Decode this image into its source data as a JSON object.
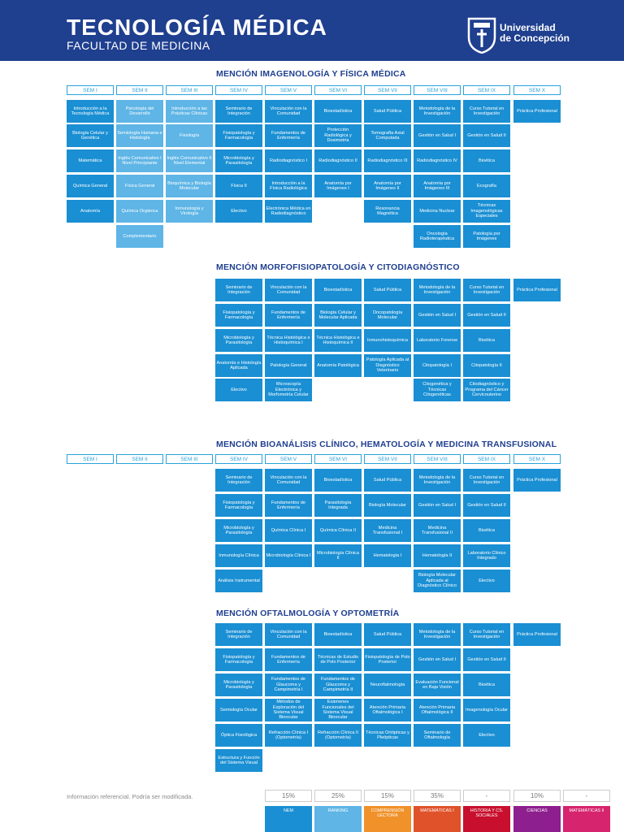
{
  "header": {
    "title": "TECNOLOGÍA MÉDICA",
    "subtitle": "FACULTAD DE MEDICINA",
    "university": [
      "Universidad",
      "de Concepción"
    ]
  },
  "semesters": [
    "SEM I",
    "SEM II",
    "SEM III",
    "SEM IV",
    "SEM V",
    "SEM VI",
    "SEM VII",
    "SEM VIII",
    "SEM IX",
    "SEM X"
  ],
  "sections": [
    {
      "title": "MENCIÓN IMAGENOLOGÍA Y FÍSICA MÉDICA",
      "show_sems": true,
      "columns": [
        [
          "Introducción a la Tecnología Médica",
          "Biología Celular y Genética",
          "Matemática",
          "Química General",
          "Anatomía"
        ],
        [
          "Psicología del Desarrollo",
          "Semiología Humana e Histología",
          "Inglés Comunicativo I Nivel Principiante",
          "Física General",
          "Química Orgánica",
          "Complementario"
        ],
        [
          "Introducción a las Prácticas Clínicas",
          "Fisiología",
          "Inglés Comunicativo II Nivel Elemental",
          "Bioquímica y Biología Molecular",
          "Inmunología y Virología"
        ],
        [
          "Seminario de Integración",
          "Fisiopatología y Farmacología",
          "Microbiología y Parasitología",
          "Física II",
          "Electivo"
        ],
        [
          "Vinculación con la Comunidad",
          "Fundamentos de Enfermería",
          "Radiodiagnóstico I",
          "Introducción a la Física Radiológica",
          "Electrónica Médica en Radiodiagnóstico"
        ],
        [
          "Bioestadística",
          "Protección Radiológica y Dosimetría",
          "Radiodiagnóstico II",
          "Anatomía por Imágenes I"
        ],
        [
          "Salud Pública",
          "Tomografía Axial Computada",
          "Radiodiagnóstico III",
          "Anatomía por Imágenes II",
          "Resonancia Magnética"
        ],
        [
          "Metodología de la Investigación",
          "Gestión en Salud I",
          "Radiodiagnóstico IV",
          "Anatomía por Imágenes III",
          "Medicina Nuclear",
          "Oncología Radioterapéutica"
        ],
        [
          "Curso Tutorial en Investigación",
          "Gestión en Salud II",
          "Bioética",
          "Ecografía",
          "Técnicas Imagenológicas Especiales",
          "Patología por Imágenes"
        ],
        [
          "Práctica Profesional"
        ]
      ]
    },
    {
      "title": "MENCIÓN MORFOFISIOPATOLOGÍA Y CITODIAGNÓSTICO",
      "show_sems": false,
      "columns": [
        [],
        [],
        [],
        [
          "Seminario de Integración",
          "Fisiopatología y Farmacología",
          "Microbiología y Parasitología",
          "Anatomía e Histología Aplicada",
          "Electivo"
        ],
        [
          "Vinculación con la Comunidad",
          "Fundamentos de Enfermería",
          "Técnica Histológica e Histoquímica I",
          "Patología General",
          "Microscopía Electrónica y Morfometría Celular"
        ],
        [
          "Bioestadística",
          "Biología Celular y Molecular Aplicada",
          "Técnica Histológica e Histoquímica II",
          "Anatomía Patológica"
        ],
        [
          "Salud Pública",
          "Oncopatología Molecular",
          "Inmunohistoquímica",
          "Patología Aplicada al Diagnóstico Veterinario"
        ],
        [
          "Metodología de la Investigación",
          "Gestión en Salud I",
          "Laboratorio Forense",
          "Citopatología I",
          "Citogenética y Técnicas Citogenéticas"
        ],
        [
          "Curso Tutorial en Investigación",
          "Gestión en Salud II",
          "Bioética",
          "Citopatología II",
          "Citodiagnóstico y Programa del Cáncer Cervicouterino"
        ],
        [
          "Práctica Profesional"
        ]
      ]
    },
    {
      "title": "MENCIÓN BIOANÁLISIS CLÍNICO, HEMATOLOGÍA Y MEDICINA TRANSFUSIONAL",
      "show_sems": true,
      "columns": [
        [],
        [],
        [],
        [
          "Seminario de Integración",
          "Fisiopatología y Farmacología",
          "Microbiología y Parasitología",
          "Inmunología Clínica",
          "Análisis Instrumental"
        ],
        [
          "Vinculación con la Comunidad",
          "Fundamentos de Enfermería",
          "Química Clínica I",
          "Microbiología Clínica I"
        ],
        [
          "Bioestadística",
          "Parasitología Integrada",
          "Química Clínica II",
          "Microbiología Clínica II"
        ],
        [
          "Salud Pública",
          "Biología Molecular",
          "Medicina Transfusional I",
          "Hematología I"
        ],
        [
          "Metodología de la Investigación",
          "Gestión en Salud I",
          "Medicina Transfusional II",
          "Hematología II",
          "Biología Molecular Aplicada al Diagnóstico Clínico"
        ],
        [
          "Curso Tutorial en Investigación",
          "Gestión en Salud II",
          "Bioética",
          "Laboratorio Clínico Integrado",
          "Electivo"
        ],
        [
          "Práctica Profesional"
        ]
      ]
    },
    {
      "title": "MENCIÓN OFTALMOLOGÍA Y OPTOMETRÍA",
      "show_sems": false,
      "columns": [
        [],
        [],
        [],
        [
          "Seminario de Integración",
          "Fisiopatología y Farmacología",
          "Microbiología y Parasitología",
          "Semiología Ocular",
          "Óptica Fisiológica",
          "Estructura y Función del Sistema Visual"
        ],
        [
          "Vinculación con la Comunidad",
          "Fundamentos de Enfermería",
          "Fundamentos de Glaucoma y Campimetría I",
          "Métodos de Exploración del Sistema Visual Binocular",
          "Refracción Clínica I (Optometría)"
        ],
        [
          "Bioestadística",
          "Técnicas de Estudio de Polo Posterior",
          "Fundamentos de Glaucoma y Campimetría II",
          "Exámenes Funcionales del Sistema Visual Binocular",
          "Refracción Clínica II (Optometría)"
        ],
        [
          "Salud Pública",
          "Fisiopatología de Polo Posterior",
          "Neuroftalmología",
          "Atención Primaria Oftalmológica I",
          "Técnicas Ortópticas y Pleópticas"
        ],
        [
          "Metodología de la Investigación",
          "Gestión en Salud I",
          "Evaluación Funcional en Baja Visión",
          "Atención Primaria Oftalmológica II",
          "Seminario de Oftalmología"
        ],
        [
          "Curso Tutorial en Investigación",
          "Gestión en Salud II",
          "Bioética",
          "Imagenología Ocular",
          "Electivo"
        ],
        [
          "Práctica Profesional"
        ]
      ]
    }
  ],
  "footer": {
    "note": "Información referencial. Podría ser modificada.",
    "percentages": [
      "15%",
      "25%",
      "15%",
      "35%",
      "-",
      "10%",
      "-"
    ],
    "legend": [
      {
        "label": "NEM",
        "color": "#1a8fd3"
      },
      {
        "label": "RANKING",
        "color": "#5eb5e6"
      },
      {
        "label": "COMPRENSIÓN LECTORA",
        "color": "#f0912a"
      },
      {
        "label": "MATEMÁTICAS I",
        "color": "#e0522a"
      },
      {
        "label": "HISTORIA Y CS. SOCIALES",
        "color": "#c8102e"
      },
      {
        "label": "CIENCIAS",
        "color": "#8e1f8e"
      },
      {
        "label": "MATEMÁTICAS II",
        "color": "#d6246e"
      }
    ]
  }
}
